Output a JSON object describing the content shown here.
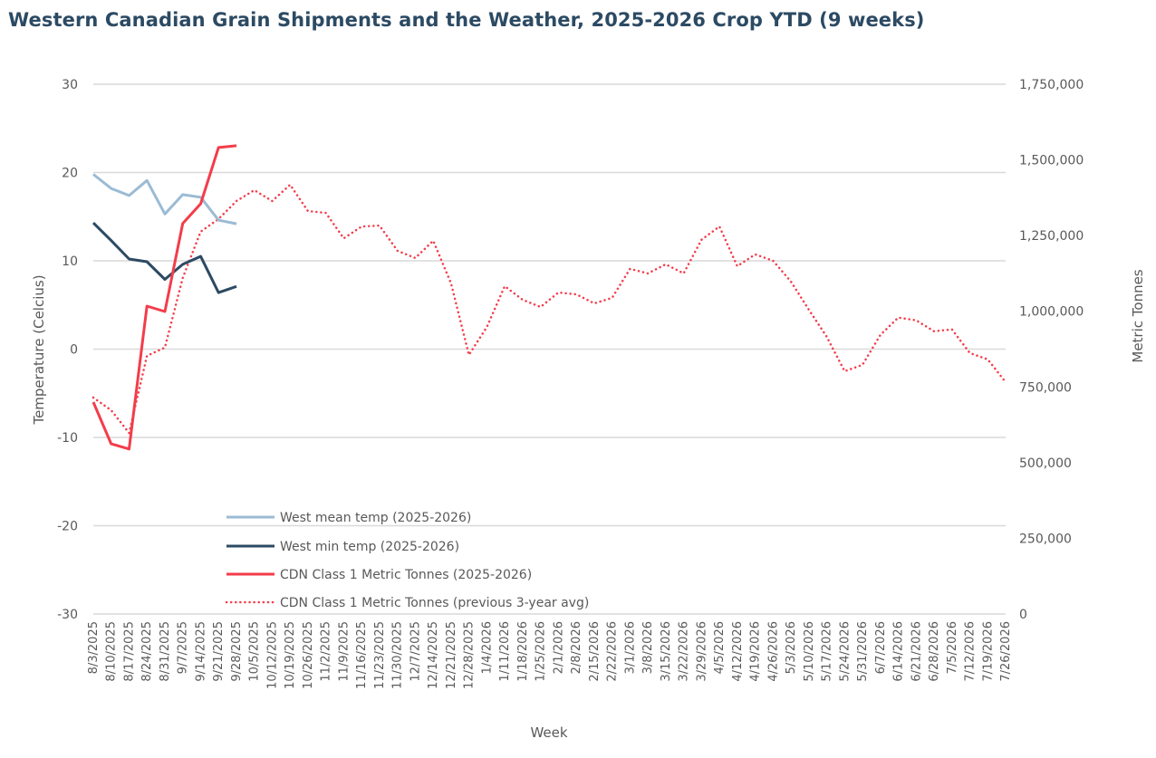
{
  "chart_data": {
    "type": "line",
    "title": "Western Canadian Grain Shipments and the Weather, 2025-2026 Crop YTD (9 weeks)",
    "xlabel": "Week",
    "ylabel_left": "Temperature (Celcius)",
    "ylabel_right": "Metric Tonnes",
    "ylim_left": [
      -30,
      30
    ],
    "yticks_left": [
      30,
      20,
      10,
      0,
      -10,
      -20,
      -30
    ],
    "ylim_right": [
      0,
      1750000
    ],
    "yticks_right": [
      "1,750,000",
      "1,500,000",
      "1,250,000",
      "1,000,000",
      "750,000",
      "500,000",
      "250,000",
      "0"
    ],
    "yticks_right_values": [
      1750000,
      1500000,
      1250000,
      1000000,
      750000,
      500000,
      250000,
      0
    ],
    "grid": true,
    "legend_position": "bottom-left (inside plot)",
    "categories": [
      "8/3/2025",
      "8/10/2025",
      "8/17/2025",
      "8/24/2025",
      "8/31/2025",
      "9/7/2025",
      "9/14/2025",
      "9/21/2025",
      "9/28/2025",
      "10/5/2025",
      "10/12/2025",
      "10/19/2025",
      "10/26/2025",
      "11/2/2025",
      "11/9/2025",
      "11/16/2025",
      "11/23/2025",
      "11/30/2025",
      "12/7/2025",
      "12/14/2025",
      "12/21/2025",
      "12/28/2025",
      "1/4/2026",
      "1/11/2026",
      "1/18/2026",
      "1/25/2026",
      "2/1/2026",
      "2/8/2026",
      "2/15/2026",
      "2/22/2026",
      "3/1/2026",
      "3/8/2026",
      "3/15/2026",
      "3/22/2026",
      "3/29/2026",
      "4/5/2026",
      "4/12/2026",
      "4/19/2026",
      "4/26/2026",
      "5/3/2026",
      "5/10/2026",
      "5/17/2026",
      "5/24/2026",
      "5/31/2026",
      "6/7/2026",
      "6/14/2026",
      "6/21/2026",
      "6/28/2026",
      "7/5/2026",
      "7/12/2026",
      "7/19/2026",
      "7/26/2026"
    ],
    "series": [
      {
        "name": "West mean temp (2025-2026)",
        "axis": "left",
        "color": "#9bbbd4",
        "style": "solid",
        "values": [
          19.8,
          18.2,
          17.4,
          19.1,
          15.3,
          17.5,
          17.2,
          14.6,
          14.2
        ]
      },
      {
        "name": "West min temp (2025-2026)",
        "axis": "left",
        "color": "#2c4a63",
        "style": "solid",
        "values": [
          14.3,
          12.3,
          10.2,
          9.9,
          7.9,
          9.6,
          10.5,
          6.4,
          7.1
        ]
      },
      {
        "name": "CDN Class 1 Metric Tonnes (2025-2026)",
        "axis": "right",
        "color": "#f33d4a",
        "style": "solid",
        "values": [
          700000,
          562000,
          545000,
          1017000,
          999000,
          1290000,
          1355000,
          1541000,
          1547000
        ]
      },
      {
        "name": "CDN Class 1 Metric Tonnes (previous 3-year avg)",
        "axis": "right",
        "color": "#f33d4a",
        "style": "dotted",
        "values": [
          715000,
          673000,
          598000,
          853000,
          880000,
          1110000,
          1263000,
          1305000,
          1364000,
          1400000,
          1364000,
          1418000,
          1331000,
          1325000,
          1241000,
          1280000,
          1283000,
          1200000,
          1176000,
          1233000,
          1092000,
          856000,
          948000,
          1083000,
          1038000,
          1014000,
          1062000,
          1056000,
          1026000,
          1044000,
          1140000,
          1125000,
          1155000,
          1125000,
          1236000,
          1280000,
          1149000,
          1188000,
          1167000,
          1098000,
          1005000,
          916000,
          802000,
          823000,
          922000,
          979000,
          970000,
          934000,
          940000,
          862000,
          841000,
          766000
        ]
      }
    ]
  }
}
